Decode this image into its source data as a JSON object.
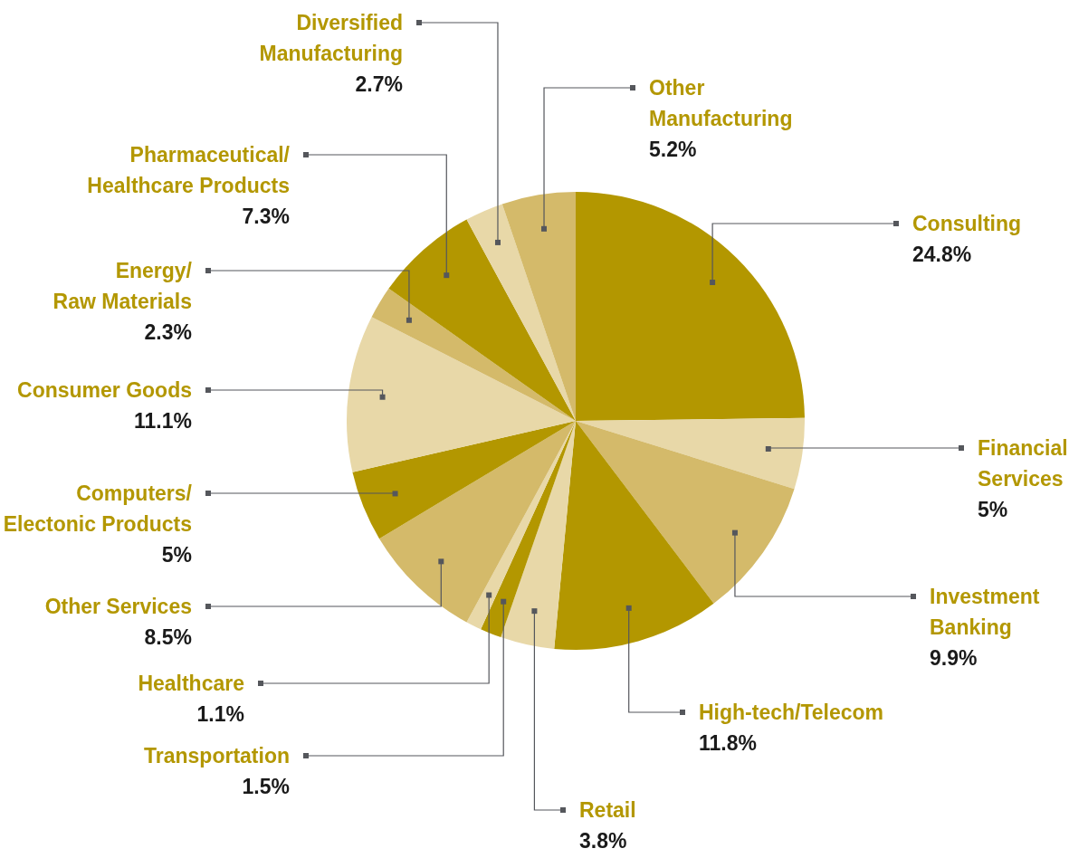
{
  "chart_data": {
    "type": "pie",
    "categories": [
      "Consulting",
      "Financial Services",
      "Investment Banking",
      "High-tech/Telecom",
      "Retail",
      "Transportation",
      "Healthcare",
      "Other Services",
      "Computers/ Electonic Products",
      "Consumer Goods",
      "Energy/ Raw Materials",
      "Pharmaceutical/ Healthcare Products",
      "Diversified Manufacturing",
      "Other Manufacturing"
    ],
    "values": [
      24.8,
      5,
      9.9,
      11.8,
      3.8,
      1.5,
      1.1,
      8.5,
      5,
      11.1,
      2.3,
      7.3,
      2.7,
      5.2
    ],
    "value_labels": [
      "24.8%",
      "5%",
      "9.9%",
      "11.8%",
      "3.8%",
      "1.5%",
      "1.1%",
      "8.5%",
      "5%",
      "11.1%",
      "2.3%",
      "7.3%",
      "2.7%",
      "5.2%"
    ],
    "colors": [
      "#b39700",
      "#e8d8a8",
      "#d4ba6a",
      "#b39700",
      "#e8d8a8",
      "#b39700",
      "#e8d8a8",
      "#d4ba6a",
      "#b39700",
      "#e8d8a8",
      "#d4ba6a",
      "#b39700",
      "#e8d8a8",
      "#d4ba6a"
    ],
    "legend": false
  }
}
